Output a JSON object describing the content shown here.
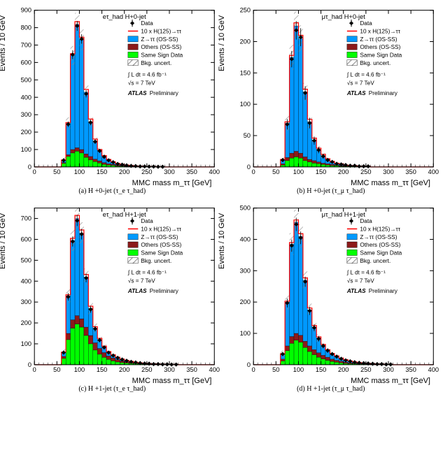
{
  "global": {
    "data_marker": "Data",
    "signal_label": "10 x H(125)→ττ",
    "ztt_label": "Z→ττ (OS-SS)",
    "others_label": "Others (OS-SS)",
    "ss_label": "Same Sign Data",
    "bkg_label": "Bkg. uncert.",
    "lumi": "∫ L dt = 4.6 fb⁻¹",
    "sqrt_s": "√s = 7 TeV",
    "atlas": "ATLAS",
    "prelim": "Preliminary",
    "xlabel": "MMC mass m_ττ [GeV]",
    "ylabel": "Events / 10 GeV",
    "colors": {
      "ztt": "#0099ff",
      "others": "#8b1a1a",
      "ss": "#00ff00",
      "signal": "#ff0000",
      "data": "#000000",
      "hatch": "#888888",
      "axis": "#000000"
    },
    "xlim": [
      0,
      400
    ],
    "xticks": [
      0,
      50,
      100,
      150,
      200,
      250,
      300,
      350,
      400
    ],
    "nbins": 40,
    "bin_width": 10
  },
  "panels": [
    {
      "id": "a",
      "title": "eτ_had H+0-jet",
      "subcap": "(a)  H +0-jet (τ_e τ_had)",
      "ylim": [
        0,
        900
      ],
      "yticks": [
        0,
        100,
        200,
        300,
        400,
        500,
        600,
        700,
        800,
        900
      ],
      "ss": [
        0,
        0,
        0,
        0,
        0,
        0,
        20,
        60,
        80,
        90,
        80,
        55,
        40,
        30,
        22,
        15,
        10,
        8,
        5,
        4,
        3,
        2,
        2,
        1,
        1,
        1,
        0,
        0,
        0,
        0,
        0,
        0,
        0,
        0,
        0,
        0,
        0,
        0,
        0,
        0
      ],
      "others": [
        0,
        0,
        0,
        0,
        0,
        0,
        25,
        70,
        100,
        110,
        100,
        75,
        60,
        45,
        35,
        25,
        18,
        14,
        10,
        8,
        6,
        4,
        3,
        2,
        2,
        1,
        1,
        0,
        0,
        0,
        0,
        0,
        0,
        0,
        0,
        0,
        0,
        0,
        0,
        0
      ],
      "ztt": [
        0,
        0,
        0,
        0,
        0,
        0,
        40,
        250,
        640,
        820,
        730,
        430,
        260,
        150,
        95,
        60,
        40,
        28,
        18,
        14,
        10,
        7,
        5,
        4,
        3,
        2,
        2,
        1,
        1,
        0,
        0,
        0,
        0,
        0,
        0,
        0,
        0,
        0,
        0,
        0
      ],
      "signal": [
        0,
        0,
        0,
        0,
        0,
        0,
        40,
        255,
        650,
        835,
        745,
        445,
        275,
        160,
        100,
        65,
        43,
        30,
        20,
        15,
        11,
        8,
        5,
        4,
        3,
        2,
        2,
        1,
        1,
        0,
        0,
        0,
        0,
        0,
        0,
        0,
        0,
        0,
        0,
        0
      ],
      "data": [
        0,
        0,
        0,
        0,
        0,
        0,
        38,
        245,
        645,
        810,
        735,
        420,
        255,
        145,
        92,
        58,
        38,
        27,
        17,
        13,
        9,
        6,
        5,
        3,
        3,
        2,
        2,
        1,
        1,
        0,
        0,
        0,
        0,
        0,
        0,
        0,
        0,
        0,
        0,
        0
      ],
      "uncert": [
        0,
        0,
        0,
        0,
        0,
        0,
        15,
        35,
        55,
        65,
        60,
        40,
        28,
        20,
        15,
        12,
        9,
        7,
        5,
        4,
        3,
        3,
        2,
        2,
        1,
        1,
        1,
        1,
        0,
        0,
        0,
        0,
        0,
        0,
        0,
        0,
        0,
        0,
        0,
        0
      ]
    },
    {
      "id": "b",
      "title": "μτ_had H+0-jet",
      "subcap": "(b)  H +0-jet (τ_μ τ_had)",
      "ylim": [
        0,
        250
      ],
      "yticks": [
        0,
        50,
        100,
        150,
        200,
        250
      ],
      "ss": [
        0,
        0,
        0,
        0,
        0,
        0,
        3,
        10,
        14,
        16,
        14,
        10,
        8,
        6,
        5,
        4,
        3,
        2,
        2,
        1,
        1,
        1,
        1,
        0,
        0,
        0,
        0,
        0,
        0,
        0,
        0,
        0,
        0,
        0,
        0,
        0,
        0,
        0,
        0,
        0
      ],
      "others": [
        0,
        0,
        0,
        0,
        0,
        0,
        5,
        15,
        22,
        25,
        22,
        16,
        12,
        10,
        8,
        6,
        5,
        4,
        3,
        2,
        2,
        1,
        1,
        1,
        0,
        0,
        0,
        0,
        0,
        0,
        0,
        0,
        0,
        0,
        0,
        0,
        0,
        0,
        0,
        0
      ],
      "ztt": [
        0,
        0,
        0,
        0,
        0,
        0,
        12,
        70,
        175,
        225,
        205,
        120,
        72,
        43,
        28,
        18,
        12,
        8,
        6,
        4,
        3,
        2,
        2,
        1,
        1,
        1,
        0,
        0,
        0,
        0,
        0,
        0,
        0,
        0,
        0,
        0,
        0,
        0,
        0,
        0
      ],
      "signal": [
        0,
        0,
        0,
        0,
        0,
        0,
        12,
        72,
        178,
        230,
        210,
        124,
        76,
        46,
        30,
        20,
        13,
        9,
        6,
        5,
        3,
        2,
        2,
        1,
        1,
        1,
        0,
        0,
        0,
        0,
        0,
        0,
        0,
        0,
        0,
        0,
        0,
        0,
        0,
        0
      ],
      "data": [
        0,
        0,
        0,
        0,
        0,
        0,
        11,
        68,
        172,
        218,
        207,
        118,
        70,
        42,
        27,
        17,
        11,
        8,
        5,
        4,
        3,
        2,
        2,
        1,
        1,
        1,
        0,
        0,
        0,
        0,
        0,
        0,
        0,
        0,
        0,
        0,
        0,
        0,
        0,
        0
      ],
      "uncert": [
        0,
        0,
        0,
        0,
        0,
        0,
        5,
        12,
        20,
        23,
        21,
        14,
        10,
        7,
        5,
        4,
        3,
        2,
        2,
        1,
        1,
        1,
        1,
        0,
        0,
        0,
        0,
        0,
        0,
        0,
        0,
        0,
        0,
        0,
        0,
        0,
        0,
        0,
        0,
        0
      ]
    },
    {
      "id": "c",
      "title": "eτ_had H+1-jet",
      "subcap": "(c)  H +1-jet (τ_e τ_had)",
      "ylim": [
        0,
        750
      ],
      "yticks": [
        0,
        100,
        200,
        300,
        400,
        500,
        600,
        700
      ],
      "ss": [
        0,
        0,
        0,
        0,
        0,
        0,
        30,
        120,
        175,
        195,
        180,
        140,
        100,
        70,
        50,
        35,
        25,
        18,
        13,
        10,
        8,
        6,
        5,
        4,
        3,
        2,
        2,
        1,
        1,
        1,
        0,
        0,
        0,
        0,
        0,
        0,
        0,
        0,
        0,
        0
      ],
      "others": [
        0,
        0,
        0,
        0,
        0,
        0,
        40,
        150,
        215,
        235,
        220,
        180,
        140,
        105,
        78,
        58,
        42,
        32,
        24,
        18,
        14,
        11,
        8,
        6,
        5,
        4,
        3,
        2,
        2,
        1,
        1,
        0,
        0,
        0,
        0,
        0,
        0,
        0,
        0,
        0
      ],
      "ztt": [
        0,
        0,
        0,
        0,
        0,
        0,
        60,
        330,
        595,
        700,
        630,
        420,
        270,
        175,
        120,
        85,
        60,
        45,
        34,
        26,
        20,
        15,
        12,
        9,
        7,
        5,
        4,
        3,
        2,
        2,
        1,
        1,
        0,
        0,
        0,
        0,
        0,
        0,
        0,
        0
      ],
      "signal": [
        0,
        0,
        0,
        0,
        0,
        0,
        60,
        335,
        605,
        715,
        645,
        432,
        280,
        182,
        126,
        89,
        63,
        47,
        36,
        27,
        21,
        16,
        12,
        9,
        7,
        5,
        4,
        3,
        2,
        2,
        1,
        1,
        0,
        0,
        0,
        0,
        0,
        0,
        0,
        0
      ],
      "data": [
        0,
        0,
        0,
        0,
        0,
        0,
        58,
        325,
        590,
        690,
        625,
        415,
        265,
        172,
        118,
        83,
        58,
        44,
        33,
        25,
        19,
        14,
        11,
        8,
        6,
        5,
        3,
        3,
        2,
        2,
        1,
        1,
        0,
        0,
        0,
        0,
        0,
        0,
        0,
        0
      ],
      "uncert": [
        0,
        0,
        0,
        0,
        0,
        0,
        15,
        35,
        50,
        55,
        52,
        40,
        30,
        22,
        17,
        13,
        10,
        8,
        6,
        5,
        4,
        3,
        3,
        2,
        2,
        1,
        1,
        1,
        1,
        0,
        0,
        0,
        0,
        0,
        0,
        0,
        0,
        0,
        0,
        0
      ]
    },
    {
      "id": "d",
      "title": "μτ_had H+1-jet",
      "subcap": "(d)  H +1-jet (τ_μ τ_had)",
      "ylim": [
        0,
        500
      ],
      "yticks": [
        0,
        100,
        200,
        300,
        400,
        500
      ],
      "ss": [
        0,
        0,
        0,
        0,
        0,
        0,
        12,
        45,
        68,
        78,
        72,
        55,
        42,
        32,
        24,
        18,
        14,
        10,
        8,
        6,
        4,
        3,
        3,
        2,
        2,
        1,
        1,
        1,
        0,
        0,
        0,
        0,
        0,
        0,
        0,
        0,
        0,
        0,
        0,
        0
      ],
      "others": [
        0,
        0,
        0,
        0,
        0,
        0,
        18,
        60,
        90,
        100,
        94,
        75,
        60,
        48,
        38,
        30,
        24,
        18,
        14,
        11,
        8,
        6,
        5,
        4,
        3,
        2,
        2,
        1,
        1,
        1,
        0,
        0,
        0,
        0,
        0,
        0,
        0,
        0,
        0,
        0
      ],
      "ztt": [
        0,
        0,
        0,
        0,
        0,
        0,
        35,
        200,
        385,
        455,
        410,
        270,
        175,
        120,
        85,
        62,
        46,
        35,
        27,
        20,
        15,
        12,
        9,
        7,
        5,
        4,
        3,
        2,
        2,
        1,
        1,
        0,
        0,
        0,
        0,
        0,
        0,
        0,
        0,
        0
      ],
      "signal": [
        0,
        0,
        0,
        0,
        0,
        0,
        35,
        203,
        390,
        462,
        418,
        277,
        181,
        125,
        89,
        65,
        48,
        36,
        28,
        21,
        16,
        12,
        9,
        7,
        5,
        4,
        3,
        2,
        2,
        1,
        1,
        0,
        0,
        0,
        0,
        0,
        0,
        0,
        0,
        0
      ],
      "data": [
        0,
        0,
        0,
        0,
        0,
        0,
        34,
        197,
        380,
        448,
        405,
        265,
        172,
        118,
        83,
        60,
        45,
        34,
        26,
        19,
        14,
        11,
        8,
        6,
        5,
        4,
        3,
        2,
        2,
        1,
        1,
        0,
        0,
        0,
        0,
        0,
        0,
        0,
        0,
        0
      ],
      "uncert": [
        0,
        0,
        0,
        0,
        0,
        0,
        10,
        25,
        35,
        40,
        38,
        28,
        20,
        15,
        12,
        9,
        7,
        6,
        5,
        4,
        3,
        2,
        2,
        1,
        1,
        1,
        1,
        1,
        0,
        0,
        0,
        0,
        0,
        0,
        0,
        0,
        0,
        0,
        0,
        0
      ]
    }
  ]
}
